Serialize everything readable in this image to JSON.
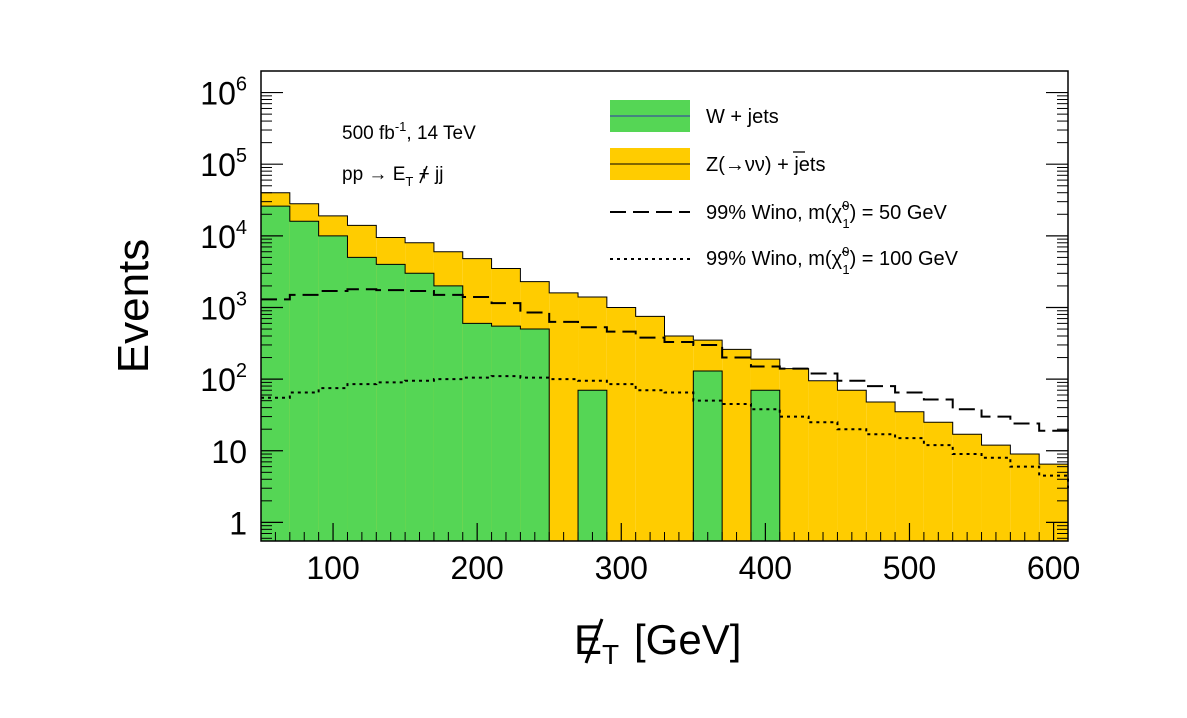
{
  "chart_data": {
    "type": "histogram",
    "y_scale": "log",
    "xlabel_main": "E",
    "xlabel_sub": "T",
    "xlabel_unit": "[GeV]",
    "ylabel": "Events",
    "xlim": [
      50,
      610
    ],
    "ylim": [
      0.55,
      2000000
    ],
    "x_ticks": [
      "100",
      "200",
      "300",
      "400",
      "500",
      "600"
    ],
    "x_tick_values": [
      100,
      200,
      300,
      400,
      500,
      600
    ],
    "y_tick_values": [
      1,
      10,
      100,
      1000,
      10000,
      100000,
      1000000
    ],
    "y_tick_labels": [
      {
        "base": "1",
        "exp": ""
      },
      {
        "base": "10",
        "exp": ""
      },
      {
        "base": "10",
        "exp": "2"
      },
      {
        "base": "10",
        "exp": "3"
      },
      {
        "base": "10",
        "exp": "4"
      },
      {
        "base": "10",
        "exp": "5"
      },
      {
        "base": "10",
        "exp": "6"
      }
    ],
    "annotations": {
      "lumi_prefix": "500 fb",
      "lumi_exp": "-1",
      "lumi_suffix": ", 14 TeV",
      "process_prefix": "pp → ",
      "process_met": "E",
      "process_sub": "T",
      "process_suffix": " + jj"
    },
    "bin_edges": [
      50,
      70,
      90,
      110,
      130,
      150,
      170,
      190,
      210,
      230,
      250,
      270,
      290,
      310,
      330,
      350,
      370,
      390,
      410,
      430,
      450,
      470,
      490,
      510,
      530,
      550,
      570,
      590,
      610
    ],
    "series": [
      {
        "name": "Z(→νν̅) + jets",
        "label_text": "Z(→νν) + jets",
        "kind": "stacked-total",
        "color": "#ffcc00",
        "values": [
          40000,
          28000,
          19000,
          14000,
          9500,
          8000,
          6000,
          4800,
          3500,
          2300,
          1600,
          1400,
          1000,
          750,
          400,
          350,
          260,
          190,
          140,
          95,
          70,
          48,
          35,
          25,
          17,
          12,
          9,
          6.5
        ]
      },
      {
        "name": "W + jets",
        "label_text": "W + jets",
        "kind": "stacked",
        "color": "#55d655",
        "values": [
          26000,
          16000,
          10000,
          5000,
          4000,
          3000,
          2000,
          600,
          550,
          500,
          0,
          70,
          0,
          0,
          0,
          130,
          0,
          70,
          0,
          0,
          0,
          0,
          0,
          0,
          0,
          0,
          0,
          0
        ]
      },
      {
        "name": "99% Wino, m(χ̃₁⁰) = 50 GeV",
        "label_prefix": "99% Wino, m(",
        "label_chi": "χ̃",
        "label_sup": "0",
        "label_sub": "1",
        "label_suffix": ") = 50 GeV",
        "kind": "line-dashed",
        "color": "#000000",
        "values": [
          1300,
          1500,
          1700,
          1800,
          1750,
          1700,
          1500,
          1400,
          1150,
          850,
          630,
          530,
          460,
          380,
          330,
          300,
          200,
          150,
          140,
          120,
          95,
          80,
          65,
          52,
          38,
          30,
          24,
          19,
          16
        ]
      },
      {
        "name": "99% Wino, m(χ̃₁⁰) = 100 GeV",
        "label_prefix": "99% Wino, m(",
        "label_chi": "χ̃",
        "label_sup": "0",
        "label_sub": "1",
        "label_suffix": ") = 100 GeV",
        "kind": "line-dotted",
        "color": "#000000",
        "values": [
          55,
          65,
          75,
          85,
          90,
          95,
          100,
          105,
          110,
          105,
          100,
          95,
          85,
          70,
          65,
          50,
          45,
          38,
          30,
          25,
          20,
          17,
          15,
          12,
          9,
          8,
          6,
          4.5,
          3
        ]
      }
    ]
  }
}
